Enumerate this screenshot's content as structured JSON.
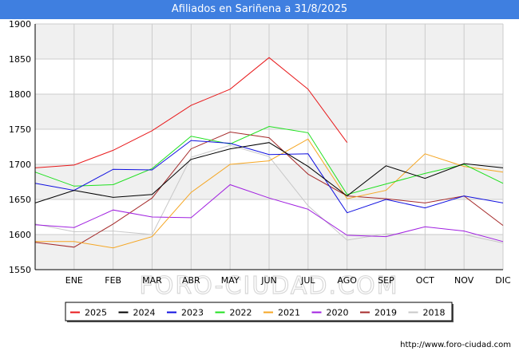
{
  "title": "Afiliados en Sariñena a 31/8/2025",
  "watermark": "FORO-CIUDAD.COM",
  "footer_url": "http://www.foro-ciudad.com",
  "colors": {
    "title_bar": "#3f7fe0",
    "grid": "#cccccc",
    "band": "#f0f0f0"
  },
  "chart_data": {
    "type": "line",
    "categories": [
      "",
      "ENE",
      "FEB",
      "MAR",
      "ABR",
      "MAY",
      "JUN",
      "JUL",
      "AGO",
      "SEP",
      "OCT",
      "NOV",
      "DIC"
    ],
    "ylim": [
      1550,
      1900
    ],
    "yticks": [
      1550,
      1600,
      1650,
      1700,
      1750,
      1800,
      1850,
      1900
    ],
    "grid": true,
    "legend_position": "bottom",
    "series": [
      {
        "name": "2025",
        "color": "#e8191b",
        "values": [
          1695,
          1699,
          1720,
          1748,
          1784,
          1807,
          1852,
          1807,
          1731,
          null,
          null,
          null,
          null
        ]
      },
      {
        "name": "2024",
        "color": "#000000",
        "values": [
          1645,
          1663,
          1653,
          1657,
          1707,
          1722,
          1731,
          1697,
          1655,
          1698,
          1680,
          1701,
          1695
        ]
      },
      {
        "name": "2023",
        "color": "#1010e0",
        "values": [
          1673,
          1663,
          1693,
          1692,
          1734,
          1730,
          1714,
          1715,
          1631,
          1650,
          1638,
          1655,
          1645
        ]
      },
      {
        "name": "2022",
        "color": "#1fe01f",
        "values": [
          1689,
          1669,
          1671,
          1694,
          1740,
          1729,
          1754,
          1745,
          1657,
          1672,
          1687,
          1700,
          1673
        ]
      },
      {
        "name": "2021",
        "color": "#f5a623",
        "values": [
          1590,
          1590,
          1581,
          1597,
          1660,
          1700,
          1705,
          1736,
          1651,
          1663,
          1715,
          1697,
          1689
        ]
      },
      {
        "name": "2020",
        "color": "#a020e0",
        "values": [
          1614,
          1610,
          1635,
          1625,
          1624,
          1671,
          1652,
          1636,
          1599,
          1597,
          1611,
          1605,
          1590
        ]
      },
      {
        "name": "2019",
        "color": "#a52a2a",
        "values": [
          1589,
          1582,
          1615,
          1652,
          1722,
          1746,
          1738,
          1686,
          1655,
          1651,
          1645,
          1655,
          1613
        ]
      },
      {
        "name": "2018",
        "color": "#c8c8c8",
        "values": [
          1615,
          1604,
          1605,
          1600,
          1710,
          1727,
          1711,
          1641,
          1592,
          1601,
          1600,
          1600,
          1588
        ]
      }
    ]
  }
}
